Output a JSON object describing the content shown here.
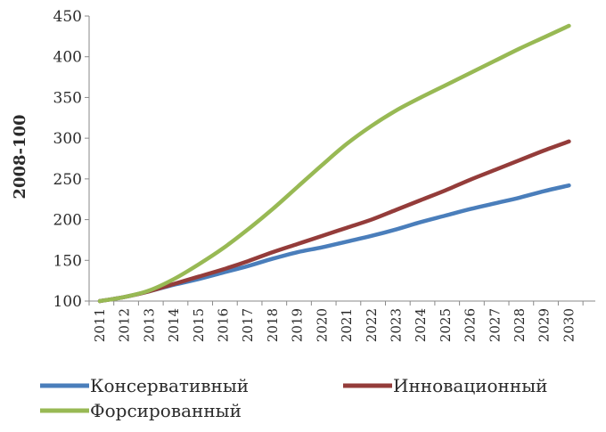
{
  "chart_data": {
    "type": "line",
    "title": "",
    "xlabel": "",
    "ylabel": "2008-100",
    "ylim": [
      100,
      450
    ],
    "yticks": [
      "100",
      "150",
      "200",
      "250",
      "300",
      "350",
      "400",
      "450"
    ],
    "x": [
      "2011",
      "2012",
      "2013",
      "2014",
      "2015",
      "2016",
      "2017",
      "2018",
      "2019",
      "2020",
      "2021",
      "2022",
      "2023",
      "2024",
      "2025",
      "2026",
      "2027",
      "2028",
      "2029",
      "2030"
    ],
    "grid": false,
    "legend_position": "bottom",
    "series": [
      {
        "name": "Консервативный",
        "color": "#4a7ebb",
        "values": [
          100,
          105,
          112,
          120,
          127,
          135,
          143,
          152,
          160,
          166,
          173,
          180,
          188,
          197,
          205,
          213,
          220,
          227,
          235,
          242
        ]
      },
      {
        "name": "Инновационный",
        "color": "#943c3a",
        "values": [
          100,
          105,
          112,
          121,
          130,
          139,
          149,
          160,
          170,
          180,
          190,
          200,
          212,
          224,
          236,
          249,
          261,
          273,
          285,
          296
        ]
      },
      {
        "name": "Форсированный",
        "color": "#98b954",
        "values": [
          100,
          105,
          113,
          127,
          145,
          165,
          188,
          213,
          240,
          267,
          293,
          315,
          334,
          350,
          365,
          380,
          395,
          410,
          424,
          438
        ]
      }
    ]
  }
}
